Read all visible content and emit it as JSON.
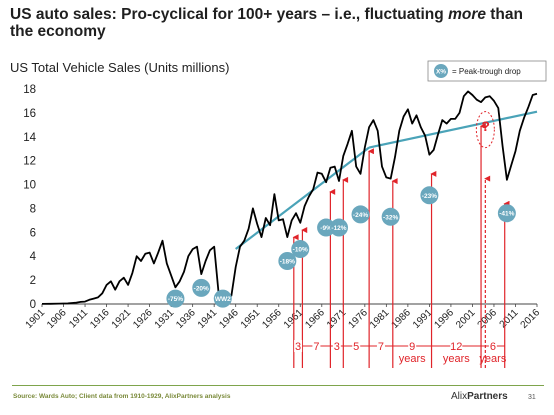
{
  "title_main": "US auto sales: Pro-cyclical for 100+ years – i.e., fluctuating ",
  "title_em": "more",
  "title_end": " than the economy",
  "footer": {
    "source": "Source: Wards Auto; Client data from 1910-1929, AlixPartners analysis",
    "logo_a": "Alix",
    "logo_b": "Partners",
    "page": "31"
  },
  "chart_data": {
    "type": "line",
    "title": "US Total Vehicle Sales (Units millions)",
    "ylim": [
      0,
      18
    ],
    "yticks": [
      0,
      2,
      4,
      6,
      8,
      10,
      12,
      14,
      16,
      18
    ],
    "xlim": [
      1901,
      2016
    ],
    "xticks": [
      1901,
      1906,
      1911,
      1916,
      1921,
      1926,
      1931,
      1936,
      1941,
      1946,
      1951,
      1956,
      1961,
      1966,
      1971,
      1976,
      1981,
      1986,
      1991,
      1996,
      2001,
      2006,
      2011,
      2016
    ],
    "legend": {
      "marker": "X%",
      "label": "= Peak-trough drop",
      "position": "top-right"
    },
    "series": [
      {
        "values": [
          [
            1901,
            0.01
          ],
          [
            1903,
            0.02
          ],
          [
            1905,
            0.03
          ],
          [
            1907,
            0.05
          ],
          [
            1909,
            0.12
          ],
          [
            1910,
            0.18
          ],
          [
            1911,
            0.2
          ],
          [
            1912,
            0.35
          ],
          [
            1913,
            0.45
          ],
          [
            1914,
            0.55
          ],
          [
            1915,
            0.9
          ],
          [
            1916,
            1.6
          ],
          [
            1917,
            1.9
          ],
          [
            1918,
            1.2
          ],
          [
            1919,
            1.9
          ],
          [
            1920,
            2.2
          ],
          [
            1921,
            1.6
          ],
          [
            1922,
            2.6
          ],
          [
            1923,
            4.0
          ],
          [
            1924,
            3.6
          ],
          [
            1925,
            4.2
          ],
          [
            1926,
            4.3
          ],
          [
            1927,
            3.4
          ],
          [
            1928,
            4.3
          ],
          [
            1929,
            5.3
          ],
          [
            1930,
            3.4
          ],
          [
            1931,
            2.4
          ],
          [
            1932,
            1.4
          ],
          [
            1933,
            1.9
          ],
          [
            1934,
            2.7
          ],
          [
            1935,
            4.0
          ],
          [
            1936,
            4.6
          ],
          [
            1937,
            4.8
          ],
          [
            1938,
            2.5
          ],
          [
            1939,
            3.6
          ],
          [
            1940,
            4.5
          ],
          [
            1941,
            4.8
          ],
          [
            1942,
            1.0
          ],
          [
            1943,
            0.6
          ],
          [
            1944,
            0.7
          ],
          [
            1945,
            0.7
          ],
          [
            1946,
            3.1
          ],
          [
            1947,
            4.8
          ],
          [
            1948,
            5.3
          ],
          [
            1949,
            6.3
          ],
          [
            1950,
            8.0
          ],
          [
            1951,
            6.7
          ],
          [
            1952,
            5.6
          ],
          [
            1953,
            7.2
          ],
          [
            1954,
            6.6
          ],
          [
            1955,
            9.2
          ],
          [
            1956,
            7.0
          ],
          [
            1957,
            7.1
          ],
          [
            1958,
            5.6
          ],
          [
            1959,
            7.0
          ],
          [
            1960,
            7.6
          ],
          [
            1961,
            6.8
          ],
          [
            1962,
            8.2
          ],
          [
            1963,
            9.0
          ],
          [
            1964,
            9.6
          ],
          [
            1965,
            11.0
          ],
          [
            1966,
            10.9
          ],
          [
            1967,
            10.2
          ],
          [
            1968,
            11.4
          ],
          [
            1969,
            11.5
          ],
          [
            1970,
            10.3
          ],
          [
            1971,
            12.4
          ],
          [
            1972,
            13.4
          ],
          [
            1973,
            14.5
          ],
          [
            1974,
            11.5
          ],
          [
            1975,
            10.9
          ],
          [
            1976,
            13.1
          ],
          [
            1977,
            14.8
          ],
          [
            1978,
            15.4
          ],
          [
            1979,
            14.5
          ],
          [
            1980,
            11.5
          ],
          [
            1981,
            10.6
          ],
          [
            1982,
            10.5
          ],
          [
            1983,
            12.3
          ],
          [
            1984,
            14.5
          ],
          [
            1985,
            15.7
          ],
          [
            1986,
            16.3
          ],
          [
            1987,
            15.1
          ],
          [
            1988,
            15.8
          ],
          [
            1989,
            14.8
          ],
          [
            1990,
            14.1
          ],
          [
            1991,
            12.5
          ],
          [
            1992,
            12.9
          ],
          [
            1993,
            14.2
          ],
          [
            1994,
            15.4
          ],
          [
            1995,
            15.1
          ],
          [
            1996,
            15.5
          ],
          [
            1997,
            15.5
          ],
          [
            1998,
            16.0
          ],
          [
            1999,
            17.4
          ],
          [
            2000,
            17.8
          ],
          [
            2001,
            17.5
          ],
          [
            2002,
            17.1
          ],
          [
            2003,
            16.9
          ],
          [
            2004,
            17.3
          ],
          [
            2005,
            17.4
          ],
          [
            2006,
            17.0
          ],
          [
            2007,
            16.4
          ],
          [
            2008,
            13.2
          ],
          [
            2009,
            10.4
          ],
          [
            2010,
            11.6
          ],
          [
            2011,
            12.8
          ],
          [
            2012,
            14.5
          ],
          [
            2013,
            15.6
          ],
          [
            2014,
            16.5
          ],
          [
            2015,
            17.5
          ],
          [
            2016,
            17.6
          ]
        ],
        "color": "#000000"
      }
    ],
    "trend_lines": [
      {
        "points": [
          [
            1946,
            4.6
          ],
          [
            1977,
            13.1
          ]
        ],
        "color": "#4aa3b8"
      },
      {
        "points": [
          [
            1977,
            13.1
          ],
          [
            2016,
            16.1
          ]
        ],
        "color": "#4aa3b8"
      }
    ],
    "drop_badges": [
      {
        "label": "-75%",
        "x": 1932,
        "y": 0.45
      },
      {
        "label": "-20%",
        "x": 1938,
        "y": 1.35
      },
      {
        "label": "WW2",
        "x": 1943,
        "y": 0.45
      },
      {
        "label": "-18%",
        "x": 1958,
        "y": 3.6
      },
      {
        "label": "-10%",
        "x": 1961,
        "y": 4.6
      },
      {
        "label": "-9%",
        "x": 1967,
        "y": 6.4
      },
      {
        "label": "-12%",
        "x": 1970,
        "y": 6.4
      },
      {
        "label": "-24%",
        "x": 1975,
        "y": 7.5
      },
      {
        "label": "-32%",
        "x": 1982,
        "y": 7.3
      },
      {
        "label": "-23%",
        "x": 1991,
        "y": 9.1
      },
      {
        "label": "-41%",
        "x": 2009,
        "y": 7.6
      }
    ],
    "cycle_arrows": [
      1959.5,
      1961.5,
      1968,
      1971,
      1977,
      1982.5,
      1991.5,
      2003,
      2008.5
    ],
    "forecast_arrow": {
      "x": 2004,
      "label": "?"
    },
    "cycle_gaps": [
      {
        "x1": 1959.5,
        "x2": 1961.5,
        "label": "3"
      },
      {
        "x1": 1961.5,
        "x2": 1968,
        "label": "7"
      },
      {
        "x1": 1968,
        "x2": 1971,
        "label": "3"
      },
      {
        "x1": 1971,
        "x2": 1977,
        "label": "5"
      },
      {
        "x1": 1977,
        "x2": 1982.5,
        "label": "7"
      },
      {
        "x1": 1982.5,
        "x2": 1991.5,
        "label": "9",
        "unit": "years"
      },
      {
        "x1": 1991.5,
        "x2": 2003,
        "label": "12",
        "unit": "years"
      },
      {
        "x1": 2003,
        "x2": 2008.5,
        "label": "6",
        "unit": "years"
      }
    ]
  }
}
